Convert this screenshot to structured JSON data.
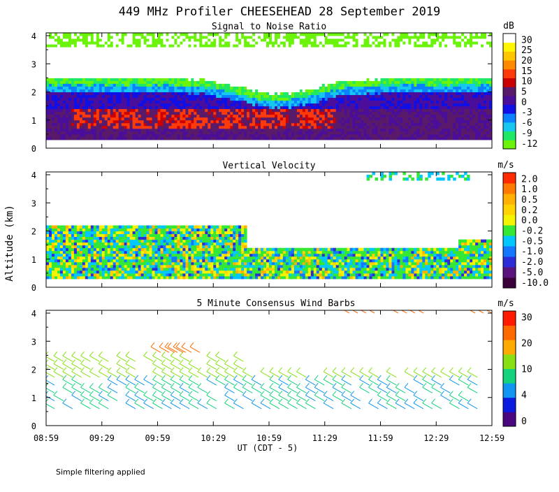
{
  "title": "449 MHz Profiler CHEESEHEAD 28 September 2019",
  "ylabel": "Altitude (km)",
  "xlabel": "UT  (CDT - 5)",
  "footnote": "Simple filtering applied",
  "x_ticks": [
    "08:59",
    "09:29",
    "09:59",
    "10:29",
    "10:59",
    "11:29",
    "11:59",
    "12:29",
    "12:59"
  ],
  "y_ticks": [
    "0",
    "1",
    "2",
    "3",
    "4"
  ],
  "colors": {
    "snr": [
      "#6cf30b",
      "#1ee866",
      "#16c8f0",
      "#0a82ff",
      "#1010e6",
      "#4a0e9a",
      "#5a1a6a",
      "#cc0000",
      "#ff3a0a",
      "#ff8a00",
      "#ffc600",
      "#fff600",
      "#ffffff"
    ],
    "vel": [
      "#3a003a",
      "#5a147e",
      "#2d2dd8",
      "#1478ff",
      "#00c8ff",
      "#36e836",
      "#f4f400",
      "#ffd200",
      "#ffb000",
      "#ff7a00",
      "#ff2a00"
    ],
    "wind": [
      "#4a0880",
      "#0a1ae0",
      "#1096f0",
      "#14d37a",
      "#88e014",
      "#ffaa00",
      "#ff6a00",
      "#ff1a00"
    ]
  },
  "chart_data": [
    {
      "type": "heatmap",
      "title": "Signal to Noise Ratio",
      "units": "dB",
      "xrange": [
        "08:59",
        "12:59"
      ],
      "ylim": [
        0,
        4
      ],
      "colorbar": [
        "-12",
        "-9",
        "-6",
        "-3",
        "0",
        "5",
        "10",
        "15",
        "20",
        "25",
        "30"
      ]
    },
    {
      "type": "heatmap",
      "title": "Vertical Velocity",
      "units": "m/s",
      "xrange": [
        "08:59",
        "12:59"
      ],
      "ylim": [
        0,
        4
      ],
      "colorbar": [
        "-10.0",
        "-5.0",
        "-2.0",
        "-1.0",
        "-0.5",
        "-0.2",
        "0.0",
        "0.2",
        "0.5",
        "1.0",
        "2.0"
      ]
    },
    {
      "type": "scatter",
      "title": "5 Minute Consensus Wind Barbs",
      "units": "m/s",
      "xrange": [
        "08:59",
        "12:59"
      ],
      "ylim": [
        0,
        4
      ],
      "colorbar": [
        "0",
        "4",
        "10",
        "20",
        "30"
      ]
    }
  ]
}
